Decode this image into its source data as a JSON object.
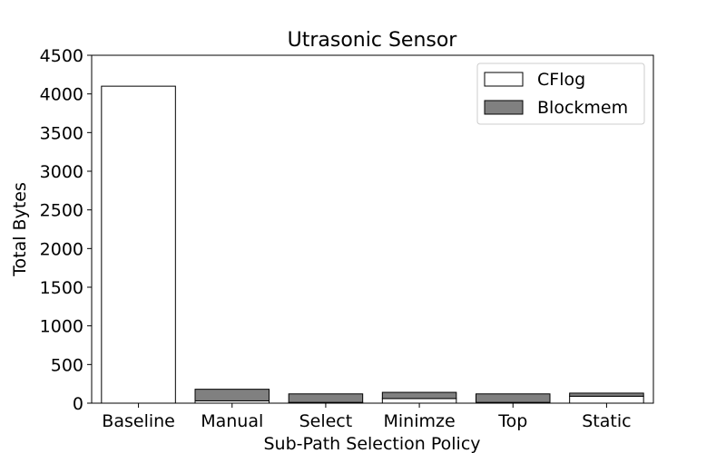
{
  "chart_data": {
    "type": "bar",
    "stacked": true,
    "title": "Utrasonic Sensor",
    "xlabel": "Sub-Path Selection Policy",
    "ylabel": "Total Bytes",
    "ylim": [
      0,
      4500
    ],
    "yticks": [
      0,
      500,
      1000,
      1500,
      2000,
      2500,
      3000,
      3500,
      4000,
      4500
    ],
    "categories": [
      "Baseline",
      "Manual",
      "Select",
      "Minimze",
      "Top",
      "Static"
    ],
    "series": [
      {
        "name": "CFlog",
        "color": "#ffffff",
        "values": [
          4100,
          30,
          10,
          60,
          10,
          90
        ]
      },
      {
        "name": "Blockmem",
        "color": "#808080",
        "values": [
          0,
          150,
          110,
          80,
          110,
          40
        ]
      }
    ],
    "grid": false,
    "legend_position": "top-right"
  }
}
